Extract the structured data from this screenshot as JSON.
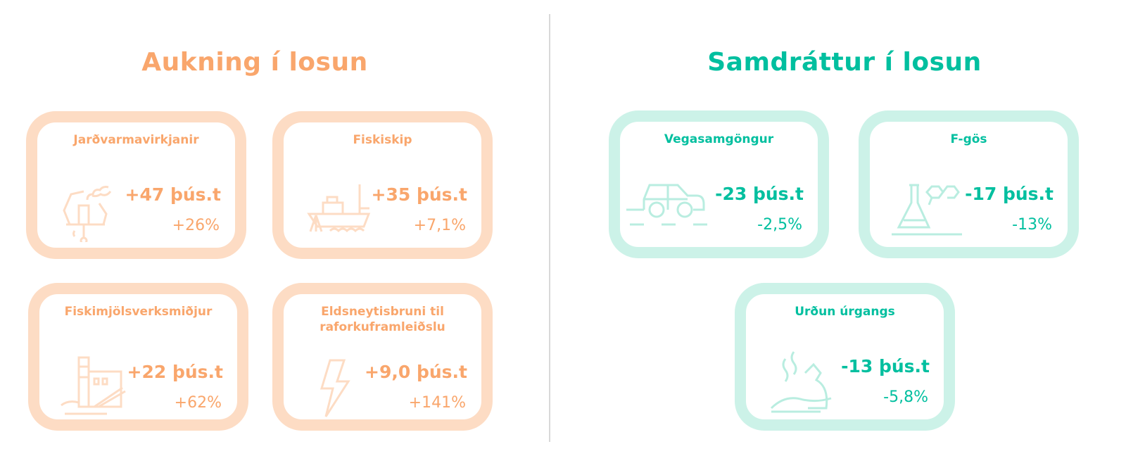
{
  "increase": {
    "heading": "Aukning í losun",
    "color": "#f9a66c",
    "border_color": "#fddcc4",
    "items": [
      {
        "title": "Jarðvarmavirkjanir",
        "value": "+47 þús.t",
        "percent": "+26%",
        "icon": "geothermal-plant-icon"
      },
      {
        "title": "Fiskiskip",
        "value": "+35 þús.t",
        "percent": "+7,1%",
        "icon": "fishing-boat-icon"
      },
      {
        "title": "Fiskimjölsverksmiðjur",
        "value": "+22 þús.t",
        "percent": "+62%",
        "icon": "factory-icon"
      },
      {
        "title": "Eldsneytisbruni til raforkuframleiðslu",
        "value": "+9,0 þús.t",
        "percent": "+141%",
        "icon": "lightning-icon"
      }
    ]
  },
  "decrease": {
    "heading": "Samdráttur í losun",
    "color": "#00bf9f",
    "border_color": "#ccf2e8",
    "items": [
      {
        "title": "Vegasamgöngur",
        "value": "-23 þús.t",
        "percent": "-2,5%",
        "icon": "car-icon"
      },
      {
        "title": "F-gös",
        "value": "-17 þús.t",
        "percent": "-13%",
        "icon": "chemistry-flask-icon"
      },
      {
        "title": "Urðun úrgangs",
        "value": "-13 þús.t",
        "percent": "-5,8%",
        "icon": "waste-bag-icon"
      }
    ]
  }
}
